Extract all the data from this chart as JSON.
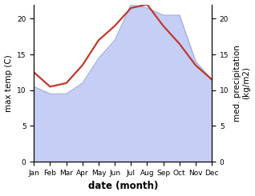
{
  "months": [
    "Jan",
    "Feb",
    "Mar",
    "Apr",
    "May",
    "Jun",
    "Jul",
    "Aug",
    "Sep",
    "Oct",
    "Nov",
    "Dec"
  ],
  "month_indices": [
    1,
    2,
    3,
    4,
    5,
    6,
    7,
    8,
    9,
    10,
    11,
    12
  ],
  "temperature": [
    12.5,
    10.5,
    11.0,
    13.5,
    17.0,
    19.0,
    21.5,
    22.0,
    19.0,
    16.5,
    13.5,
    11.5
  ],
  "precipitation": [
    10.5,
    9.5,
    9.5,
    11.0,
    14.5,
    17.0,
    22.0,
    21.5,
    20.5,
    20.5,
    14.0,
    11.5
  ],
  "temp_color": "#c0392b",
  "precip_fill_color": "#c5cff5",
  "precip_edge_color": "#9aa4d8",
  "ylabel_left": "max temp (C)",
  "ylabel_right": "med. precipitation\n(kg/m2)",
  "xlabel": "date (month)",
  "ylim": [
    0,
    22
  ],
  "yticks": [
    0,
    5,
    10,
    15,
    20
  ],
  "label_fontsize": 7.5,
  "tick_fontsize": 6.5,
  "xlabel_fontsize": 8.5,
  "linewidth": 1.6,
  "background_color": "#ffffff"
}
